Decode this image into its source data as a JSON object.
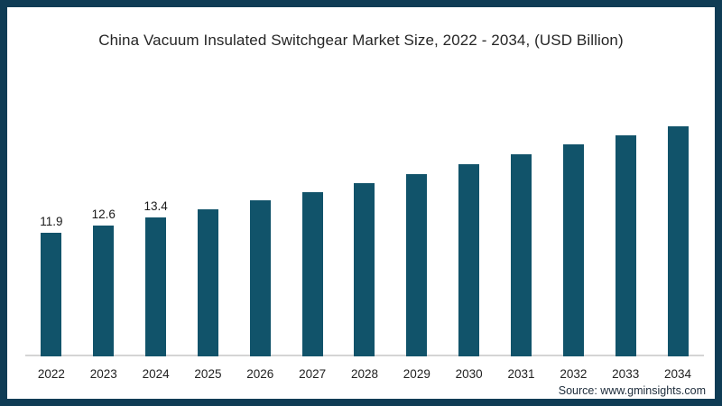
{
  "frame": {
    "border_color": "#0f3c55",
    "background": "#ffffff"
  },
  "header": {
    "title": "China Vacuum Insulated Switchgear Market Size, 2022 - 2034, (USD Billion)"
  },
  "footer": {
    "source": "Source: www.gminsights.com"
  },
  "chart_data": {
    "type": "bar",
    "title": "China Vacuum Insulated Switchgear Market Size, 2022 - 2034, (USD Billion)",
    "categories": [
      "2022",
      "2023",
      "2024",
      "2025",
      "2026",
      "2027",
      "2028",
      "2029",
      "2030",
      "2031",
      "2032",
      "2033",
      "2034"
    ],
    "values": [
      11.9,
      12.6,
      13.4,
      14.2,
      15.0,
      15.8,
      16.7,
      17.6,
      18.5,
      19.5,
      20.4,
      21.3,
      22.2
    ],
    "data_labels": [
      "11.9",
      "12.6",
      "13.4",
      "",
      "",
      "",
      "",
      "",
      "",
      "",
      "",
      "",
      ""
    ],
    "xlabel": "",
    "ylabel": "",
    "ylim": [
      0,
      24
    ],
    "value_unit": "USD Billion",
    "bar_color": "#11536a",
    "axis_line_color": "#d4d4d4",
    "grid": false,
    "legend": false
  }
}
